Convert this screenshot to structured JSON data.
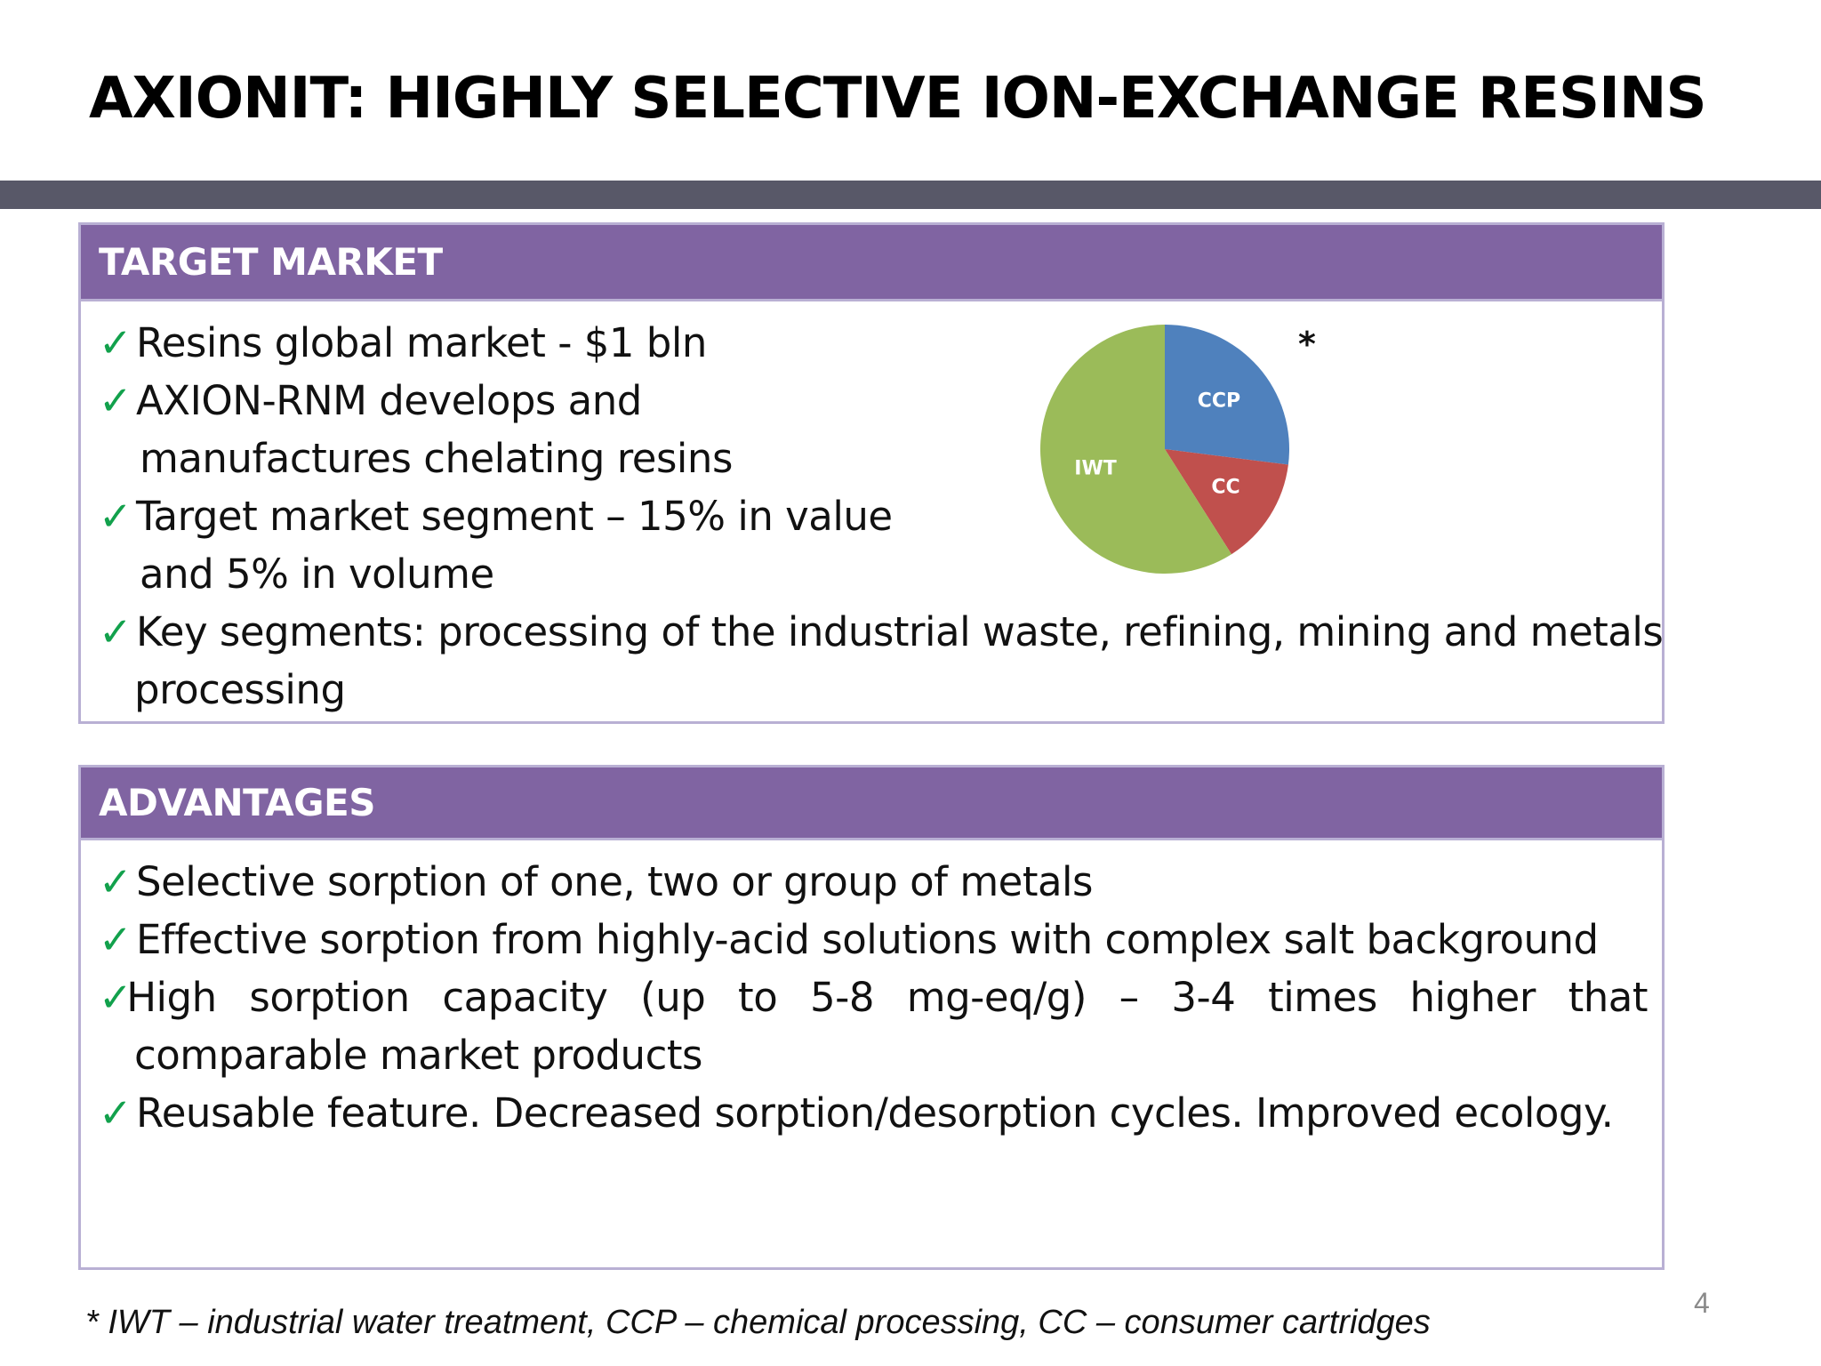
{
  "slide": {
    "title": "AXIONIT: HIGHLY SELECTIVE ION-EXCHANGE RESINS",
    "page_number": "4",
    "footnote": "* IWT – industrial water treatment, CCP – chemical processing, CC – consumer cartridges"
  },
  "target_market": {
    "heading": "TARGET MARKET",
    "check": "✓",
    "lines": [
      "Resins global market - $1 bln",
      "AXION-RNM develops and",
      "manufactures chelating resins",
      "Target market segment – 15% in value",
      "and 5% in volume",
      "Key segments: processing of the industrial waste, refining, mining and metals",
      "processing"
    ],
    "chart_marker": "*"
  },
  "advantages": {
    "heading": "ADVANTAGES",
    "check": "✓",
    "lines": [
      "Selective sorption of one, two or group of metals",
      "Effective sorption from  highly-acid solutions with complex salt background",
      "High sorption capacity (up to 5-8 mg-eq/g) – 3-4 times higher that",
      "comparable market products",
      "Reusable feature. Decreased sorption/desorption cycles. Improved ecology."
    ],
    "justified_words": [
      "High",
      "sorption",
      "capacity",
      "(up",
      "to",
      "5-8",
      "mg-eq/g)",
      "–",
      "3-4",
      "times",
      "higher",
      "that"
    ]
  },
  "chart_data": {
    "type": "pie",
    "title": "",
    "categories": [
      "CCP",
      "CC",
      "IWT"
    ],
    "values": [
      27,
      14,
      59
    ],
    "colors": [
      "#4f81bd",
      "#c0504d",
      "#9bbb59"
    ],
    "start_angle_deg": 0,
    "direction": "clockwise",
    "legend": "none",
    "labels_inside": true
  }
}
